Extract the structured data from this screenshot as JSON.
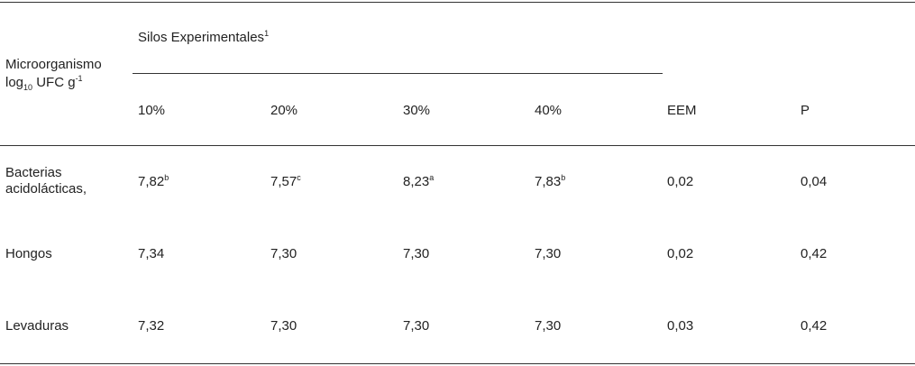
{
  "table": {
    "group_header": {
      "label": "Silos Experimentales",
      "sup": "1"
    },
    "row_header": {
      "line1": "Microorganismo",
      "line2_main": "log",
      "line2_sub": "10",
      "line2_rest": " UFC g",
      "line2_sup": "-1"
    },
    "columns": [
      "10%",
      "20%",
      "30%",
      "40%",
      "EEM",
      "P"
    ],
    "rows": [
      {
        "label": [
          "Bacterias",
          "acidolácticas,"
        ],
        "cells": [
          {
            "v": "7,82",
            "s": "b"
          },
          {
            "v": "7,57",
            "s": "c"
          },
          {
            "v": "8,23",
            "s": "a"
          },
          {
            "v": "7,83",
            "s": "b"
          },
          {
            "v": "0,02",
            "s": ""
          },
          {
            "v": "0,04",
            "s": ""
          }
        ]
      },
      {
        "label": [
          "Hongos"
        ],
        "cells": [
          {
            "v": "7,34",
            "s": ""
          },
          {
            "v": "7,30",
            "s": ""
          },
          {
            "v": "7,30",
            "s": ""
          },
          {
            "v": "7,30",
            "s": ""
          },
          {
            "v": "0,02",
            "s": ""
          },
          {
            "v": "0,42",
            "s": ""
          }
        ]
      },
      {
        "label": [
          "Levaduras"
        ],
        "cells": [
          {
            "v": "7,32",
            "s": ""
          },
          {
            "v": "7,30",
            "s": ""
          },
          {
            "v": "7,30",
            "s": ""
          },
          {
            "v": "7,30",
            "s": ""
          },
          {
            "v": "0,03",
            "s": ""
          },
          {
            "v": "0,42",
            "s": ""
          }
        ]
      }
    ]
  }
}
